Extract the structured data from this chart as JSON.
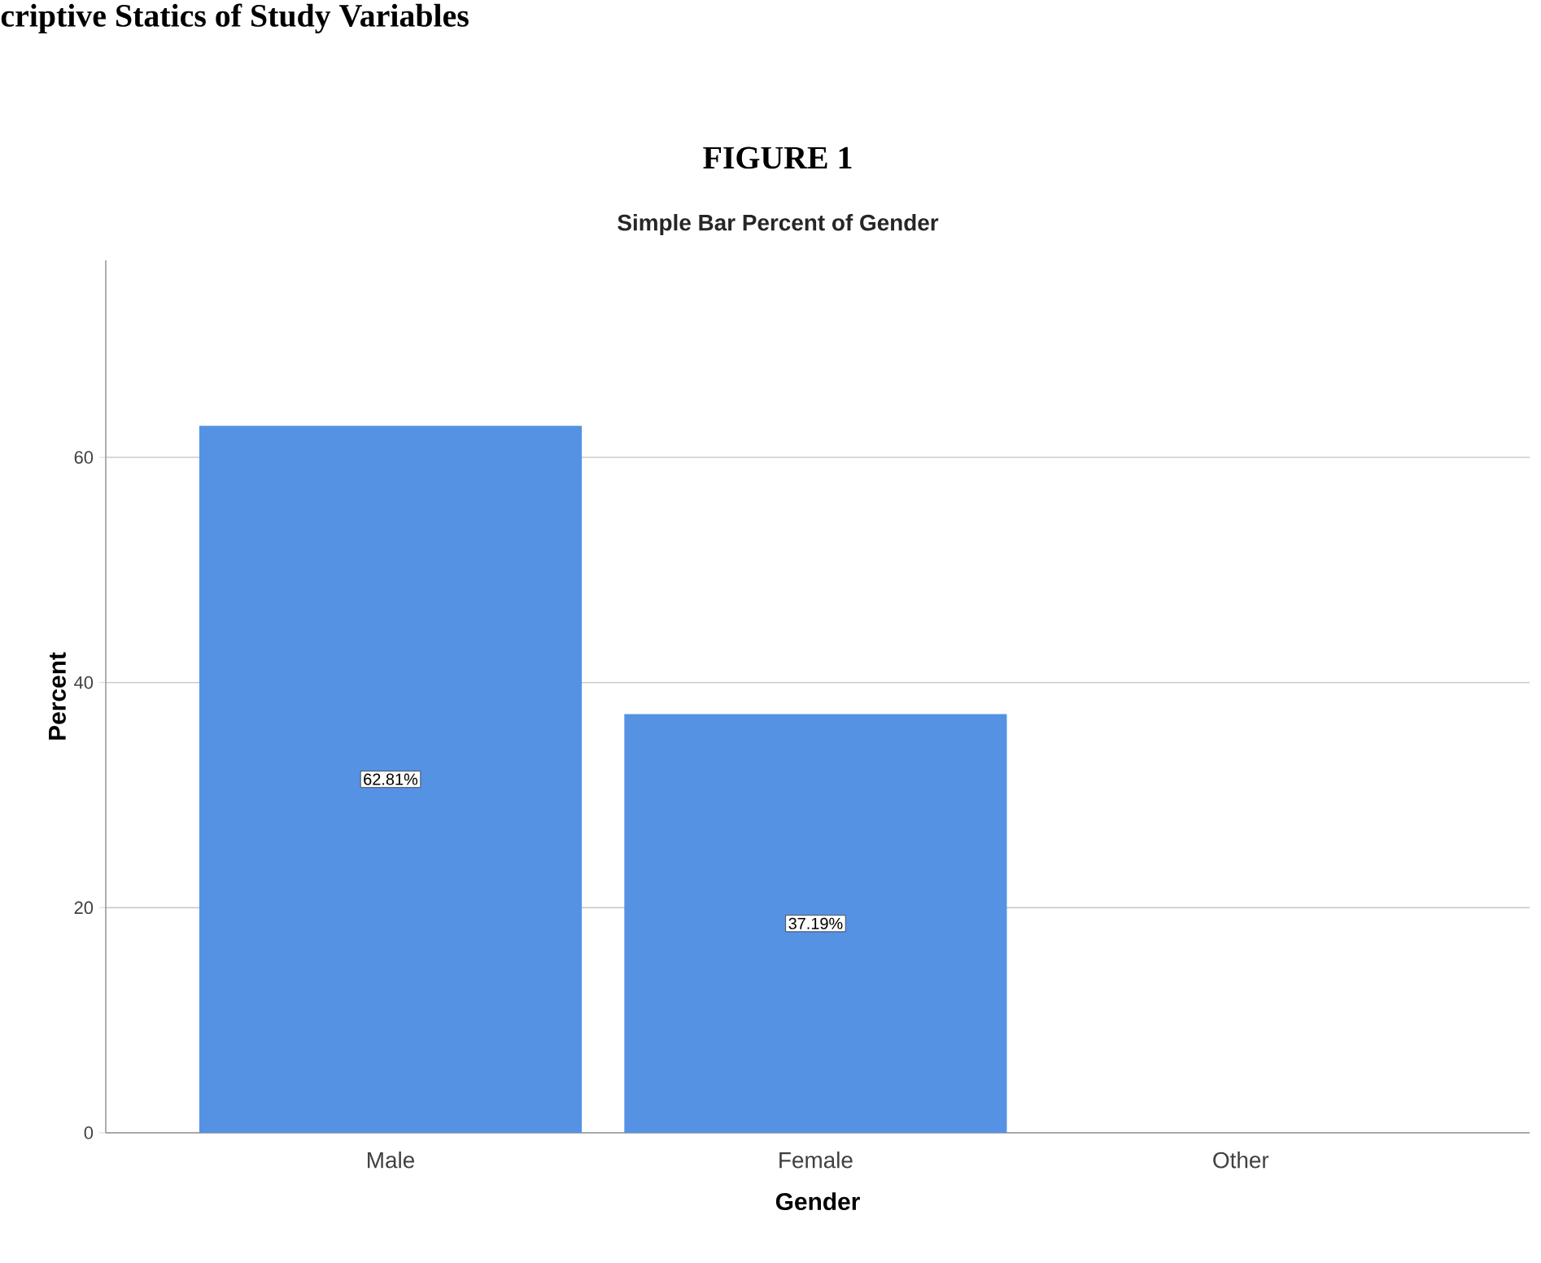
{
  "chart_data": {
    "type": "bar",
    "title": "FIGURE 1",
    "subtitle": "Simple Bar Percent of Gender",
    "xlabel": "Gender",
    "ylabel": "Percent",
    "annotations": [
      "criptive Statics of Study Variables"
    ],
    "categories": [
      "Male",
      "Female",
      "Other"
    ],
    "values": [
      62.81,
      37.19,
      0
    ],
    "value_labels": [
      "62.81%",
      "37.19%",
      null
    ],
    "color": "#5592e3",
    "ylim": [
      0,
      77.5
    ],
    "yticks": [
      0,
      20,
      40,
      60
    ],
    "grid": "y"
  }
}
